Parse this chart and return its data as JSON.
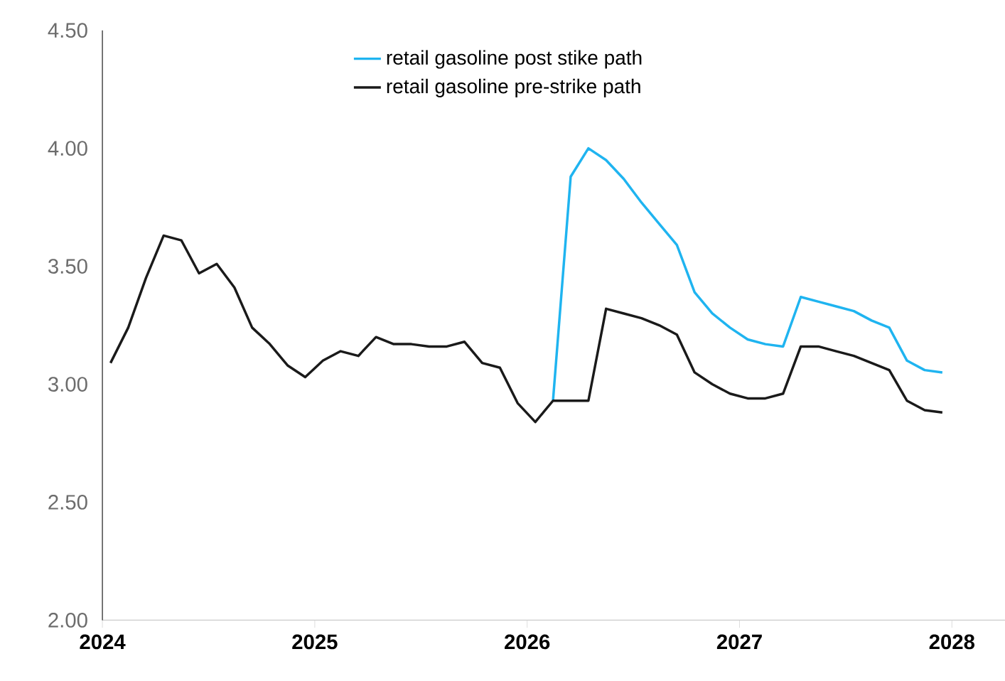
{
  "chart_data": {
    "type": "line",
    "x": [
      "2024-01-15",
      "2024-02-15",
      "2024-03-15",
      "2024-04-15",
      "2024-05-15",
      "2024-06-15",
      "2024-07-15",
      "2024-08-15",
      "2024-09-15",
      "2024-10-15",
      "2024-11-15",
      "2024-12-15",
      "2025-01-15",
      "2025-02-15",
      "2025-03-15",
      "2025-04-15",
      "2025-05-15",
      "2025-06-15",
      "2025-07-15",
      "2025-08-15",
      "2025-09-15",
      "2025-10-15",
      "2025-11-15",
      "2025-12-15",
      "2026-01-15",
      "2026-02-15",
      "2026-03-15",
      "2026-04-15",
      "2026-05-15",
      "2026-06-15",
      "2026-07-15",
      "2026-08-15",
      "2026-09-15",
      "2026-10-15",
      "2026-11-15",
      "2026-12-15",
      "2027-01-15",
      "2027-02-15",
      "2027-03-15",
      "2027-04-15",
      "2027-05-15",
      "2027-06-15",
      "2027-07-15",
      "2027-08-15",
      "2027-09-15",
      "2027-10-15",
      "2027-11-15",
      "2027-12-15"
    ],
    "series": [
      {
        "name": "retail gasoline post stike path",
        "color": "#1fb4f0",
        "values": [
          null,
          null,
          null,
          null,
          null,
          null,
          null,
          null,
          null,
          null,
          null,
          null,
          null,
          null,
          null,
          null,
          null,
          null,
          null,
          null,
          null,
          null,
          null,
          null,
          null,
          2.93,
          3.88,
          4.0,
          3.95,
          3.87,
          3.77,
          3.68,
          3.59,
          3.39,
          3.3,
          3.24,
          3.19,
          3.17,
          3.16,
          3.37,
          3.35,
          3.33,
          3.31,
          3.27,
          3.24,
          3.1,
          3.06,
          3.05
        ]
      },
      {
        "name": "retail gasoline pre-strike path",
        "color": "#1a1a1a",
        "values": [
          3.09,
          3.24,
          3.45,
          3.63,
          3.61,
          3.47,
          3.51,
          3.41,
          3.24,
          3.17,
          3.08,
          3.03,
          3.1,
          3.14,
          3.12,
          3.2,
          3.17,
          3.17,
          3.16,
          3.16,
          3.18,
          3.09,
          3.07,
          2.92,
          2.84,
          2.93,
          2.93,
          2.93,
          3.32,
          3.3,
          3.28,
          3.25,
          3.21,
          3.05,
          3.0,
          2.96,
          2.94,
          2.94,
          2.96,
          3.16,
          3.16,
          3.14,
          3.12,
          3.09,
          3.06,
          2.93,
          2.89,
          2.88
        ]
      }
    ],
    "xlim": [
      "2024",
      "2028-04"
    ],
    "xticks": [
      "2024",
      "2025",
      "2026",
      "2027",
      "2028"
    ],
    "ylim": [
      2.0,
      4.5
    ],
    "yticks": [
      {
        "value": 2.0,
        "label": "2.00"
      },
      {
        "value": 2.5,
        "label": "2.50"
      },
      {
        "value": 3.0,
        "label": "3.00"
      },
      {
        "value": 3.5,
        "label": "3.50"
      },
      {
        "value": 4.0,
        "label": "4.00"
      },
      {
        "value": 4.5,
        "label": "4.50"
      }
    ],
    "grid": false,
    "legend": "top",
    "marker": "none",
    "line_style": "solid"
  }
}
